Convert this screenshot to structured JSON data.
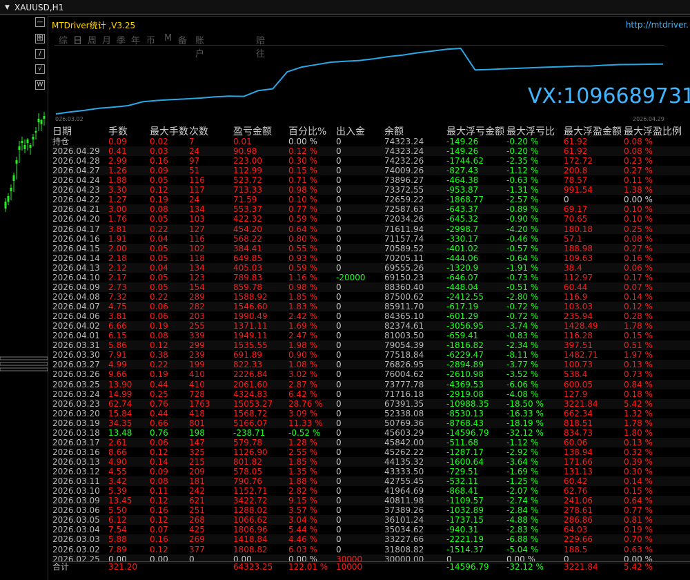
{
  "window": {
    "title": "XAUUSD,H1"
  },
  "panel": {
    "title": "MTDriver统计 ,V3.25",
    "link": "http://mtdriver.",
    "watermark": "VX:1096689731"
  },
  "sidebar_buttons": [
    "—",
    "图",
    "/",
    "√",
    "W"
  ],
  "tabs": [
    "综",
    "日",
    "周",
    "月",
    "季",
    "年",
    "币",
    "M",
    "备",
    "账户",
    "赔往"
  ],
  "equity_chart": {
    "date_start": "026.03.02",
    "date_end": "2026.04.29",
    "color": "#29a8e8",
    "values": [
      30000,
      31808.82,
      33227.66,
      35034.62,
      36101.24,
      37389.26,
      40811.98,
      41964.69,
      42755.45,
      43333.5,
      44135.32,
      45262.22,
      45842.0,
      45603.29,
      50769.36,
      52338.08,
      67391.35,
      71716.18,
      73777.78,
      76004.62,
      76826.95,
      77518.84,
      79054.39,
      81003.5,
      82374.61,
      84365.1,
      85911.7,
      87500.62,
      88360.4,
      69150.23,
      69555.26,
      70205.11,
      70589.52,
      71157.74,
      71611.94,
      72034.26,
      72587.63,
      72659.22,
      73372.55,
      73896.27,
      74009.26,
      74232.26,
      74323.24
    ]
  },
  "table": {
    "headers": [
      "日期",
      "手数",
      "最大手数",
      "次数",
      "盈亏金额",
      "百分比%",
      "出入金",
      "余额",
      "最大浮亏金额",
      "最大浮亏比",
      "最大浮盈金额",
      "最大浮盈比例"
    ],
    "rows": [
      [
        "持仓",
        "0.09",
        "0.02",
        "7",
        "0.01",
        "0.00 %",
        "0",
        "74323.24",
        "-149.26",
        "-0.20 %",
        "61.92",
        "0.08 %"
      ],
      [
        "2026.04.29",
        "0.41",
        "0.03",
        "24",
        "90.98",
        "0.12 %",
        "0",
        "74323.24",
        "-149.26",
        "-0.20 %",
        "61.92",
        "0.08 %"
      ],
      [
        "2026.04.28",
        "2.99",
        "0.16",
        "97",
        "223.00",
        "0.30 %",
        "0",
        "74232.26",
        "-1744.62",
        "-2.35 %",
        "172.72",
        "0.23 %"
      ],
      [
        "2026.04.27",
        "1.26",
        "0.09",
        "51",
        "112.99",
        "0.15 %",
        "0",
        "74009.26",
        "-827.43",
        "-1.12 %",
        "200.8",
        "0.27 %"
      ],
      [
        "2026.04.24",
        "1.88",
        "0.05",
        "116",
        "523.72",
        "0.71 %",
        "0",
        "73896.27",
        "-464.38",
        "-0.63 %",
        "78.57",
        "0.11 %"
      ],
      [
        "2026.04.23",
        "3.30",
        "0.12",
        "117",
        "713.33",
        "0.98 %",
        "0",
        "73372.55",
        "-953.87",
        "-1.31 %",
        "991.54",
        "1.38 %"
      ],
      [
        "2026.04.22",
        "1.27",
        "0.19",
        "24",
        "71.59",
        "0.10 %",
        "0",
        "72659.22",
        "-1868.77",
        "-2.57 %",
        "0",
        "0.00 %"
      ],
      [
        "2026.04.21",
        "3.00",
        "0.08",
        "134",
        "553.37",
        "0.77 %",
        "0",
        "72587.63",
        "-643.37",
        "-0.89 %",
        "69.17",
        "0.10 %"
      ],
      [
        "2026.04.20",
        "1.76",
        "0.05",
        "103",
        "422.32",
        "0.59 %",
        "0",
        "72034.26",
        "-645.32",
        "-0.90 %",
        "70.65",
        "0.10 %"
      ],
      [
        "2026.04.17",
        "3.81",
        "0.22",
        "127",
        "454.20",
        "0.64 %",
        "0",
        "71611.94",
        "-2998.7",
        "-4.20 %",
        "180.18",
        "0.25 %"
      ],
      [
        "2026.04.16",
        "1.91",
        "0.04",
        "116",
        "568.22",
        "0.80 %",
        "0",
        "71157.74",
        "-330.17",
        "-0.46 %",
        "57.1",
        "0.08 %"
      ],
      [
        "2026.04.15",
        "2.00",
        "0.05",
        "102",
        "384.41",
        "0.55 %",
        "0",
        "70589.52",
        "-401.02",
        "-0.57 %",
        "188.98",
        "0.27 %"
      ],
      [
        "2026.04.14",
        "2.18",
        "0.05",
        "118",
        "649.85",
        "0.93 %",
        "0",
        "70205.11",
        "-444.06",
        "-0.64 %",
        "109.63",
        "0.16 %"
      ],
      [
        "2026.04.13",
        "2.12",
        "0.04",
        "134",
        "405.03",
        "0.59 %",
        "0",
        "69555.26",
        "-1320.9",
        "-1.91 %",
        "38.4",
        "0.06 %"
      ],
      [
        "2026.04.10",
        "2.17",
        "0.05",
        "123",
        "789.83",
        "1.16 %",
        "-20000",
        "69150.23",
        "-646.07",
        "-0.73 %",
        "112.97",
        "0.17 %"
      ],
      [
        "2026.04.09",
        "2.73",
        "0.05",
        "154",
        "859.78",
        "0.98 %",
        "0",
        "88360.40",
        "-448.04",
        "-0.51 %",
        "60.44",
        "0.07 %"
      ],
      [
        "2026.04.08",
        "7.32",
        "0.22",
        "289",
        "1588.92",
        "1.85 %",
        "0",
        "87500.62",
        "-2412.55",
        "-2.80 %",
        "116.9",
        "0.14 %"
      ],
      [
        "2026.04.07",
        "4.75",
        "0.06",
        "282",
        "1546.60",
        "1.83 %",
        "0",
        "85911.70",
        "-617.19",
        "-0.72 %",
        "103.03",
        "0.12 %"
      ],
      [
        "2026.04.06",
        "3.81",
        "0.06",
        "203",
        "1990.49",
        "2.42 %",
        "0",
        "84365.10",
        "-601.29",
        "-0.72 %",
        "235.94",
        "0.28 %"
      ],
      [
        "2026.04.02",
        "6.66",
        "0.19",
        "255",
        "1371.11",
        "1.69 %",
        "0",
        "82374.61",
        "-3056.95",
        "-3.74 %",
        "1428.49",
        "1.78 %"
      ],
      [
        "2026.04.01",
        "6.15",
        "0.08",
        "339",
        "1949.11",
        "2.47 %",
        "0",
        "81003.50",
        "-659.41",
        "-0.83 %",
        "116.28",
        "0.15 %"
      ],
      [
        "2026.03.31",
        "5.86",
        "0.12",
        "299",
        "1535.55",
        "1.98 %",
        "0",
        "79054.39",
        "-1816.82",
        "-2.34 %",
        "397.51",
        "0.51 %"
      ],
      [
        "2026.03.30",
        "7.91",
        "0.38",
        "239",
        "691.89",
        "0.90 %",
        "0",
        "77518.84",
        "-6229.47",
        "-8.11 %",
        "1482.71",
        "1.97 %"
      ],
      [
        "2026.03.27",
        "4.99",
        "0.22",
        "199",
        "822.33",
        "1.08 %",
        "0",
        "76826.95",
        "-2894.89",
        "-3.77 %",
        "100.73",
        "0.13 %"
      ],
      [
        "2026.03.26",
        "9.66",
        "0.19",
        "410",
        "2226.84",
        "3.02 %",
        "0",
        "76004.62",
        "-2610.98",
        "-3.52 %",
        "538.4",
        "0.73 %"
      ],
      [
        "2026.03.25",
        "13.90",
        "0.44",
        "410",
        "2061.60",
        "2.87 %",
        "0",
        "73777.78",
        "-4369.53",
        "-6.06 %",
        "600.05",
        "0.84 %"
      ],
      [
        "2026.03.24",
        "14.99",
        "0.25",
        "728",
        "4324.83",
        "6.42 %",
        "0",
        "71716.18",
        "-2919.08",
        "-4.08 %",
        "127.9",
        "0.18 %"
      ],
      [
        "2026.03.23",
        "62.74",
        "0.76",
        "1763",
        "15053.27",
        "28.76 %",
        "0",
        "67391.35",
        "-10988.35",
        "-18.50 %",
        "3221.84",
        "5.42 %"
      ],
      [
        "2026.03.20",
        "15.84",
        "0.44",
        "418",
        "1568.72",
        "3.09 %",
        "0",
        "52338.08",
        "-8530.13",
        "-16.33 %",
        "662.34",
        "1.32 %"
      ],
      [
        "2026.03.19",
        "34.35",
        "0.66",
        "801",
        "5166.07",
        "11.33 %",
        "0",
        "50769.36",
        "-8768.43",
        "-18.19 %",
        "818.51",
        "1.78 %"
      ],
      [
        "2026.03.18",
        "13.48",
        "0.76",
        "198",
        "-238.71",
        "-0.52 %",
        "0",
        "45603.29",
        "-14596.79",
        "-32.12 %",
        "834.73",
        "1.80 %"
      ],
      [
        "2026.03.17",
        "2.61",
        "0.06",
        "147",
        "579.78",
        "1.28 %",
        "0",
        "45842.00",
        "-511.68",
        "-1.12 %",
        "60.06",
        "0.13 %"
      ],
      [
        "2026.03.16",
        "8.66",
        "0.12",
        "325",
        "1126.90",
        "2.55 %",
        "0",
        "45262.22",
        "-1287.17",
        "-2.92 %",
        "138.94",
        "0.32 %"
      ],
      [
        "2026.03.13",
        "4.90",
        "0.14",
        "215",
        "801.82",
        "1.85 %",
        "0",
        "44135.32",
        "-1600.64",
        "-3.64 %",
        "171.66",
        "0.39 %"
      ],
      [
        "2026.03.12",
        "4.55",
        "0.09",
        "209",
        "578.05",
        "1.35 %",
        "0",
        "43333.50",
        "-729.51",
        "-1.69 %",
        "131.13",
        "0.30 %"
      ],
      [
        "2026.03.11",
        "3.42",
        "0.08",
        "181",
        "790.76",
        "1.88 %",
        "0",
        "42755.45",
        "-532.11",
        "-1.25 %",
        "60.42",
        "0.14 %"
      ],
      [
        "2026.03.10",
        "5.39",
        "0.11",
        "242",
        "1152.71",
        "2.82 %",
        "0",
        "41964.69",
        "-868.41",
        "-2.07 %",
        "62.76",
        "0.15 %"
      ],
      [
        "2026.03.09",
        "13.45",
        "0.12",
        "621",
        "3422.72",
        "9.15 %",
        "0",
        "40811.98",
        "-1109.57",
        "-2.74 %",
        "241.06",
        "0.64 %"
      ],
      [
        "2026.03.06",
        "5.50",
        "0.16",
        "251",
        "1288.02",
        "3.57 %",
        "0",
        "37389.26",
        "-1032.89",
        "-2.84 %",
        "278.61",
        "0.77 %"
      ],
      [
        "2026.03.05",
        "6.12",
        "0.12",
        "268",
        "1066.62",
        "3.04 %",
        "0",
        "36101.24",
        "-1737.15",
        "-4.88 %",
        "286.86",
        "0.81 %"
      ],
      [
        "2026.03.04",
        "7.54",
        "0.07",
        "425",
        "1806.96",
        "5.44 %",
        "0",
        "35034.62",
        "-940.31",
        "-2.83 %",
        "64.03",
        "0.19 %"
      ],
      [
        "2026.03.03",
        "5.88",
        "0.16",
        "269",
        "1418.84",
        "4.46 %",
        "0",
        "33227.66",
        "-2221.19",
        "-6.88 %",
        "229.66",
        "0.70 %"
      ],
      [
        "2026.03.02",
        "7.89",
        "0.12",
        "377",
        "1808.82",
        "6.03 %",
        "0",
        "31808.82",
        "-1514.37",
        "-5.04 %",
        "188.5",
        "0.63 %"
      ],
      [
        "2026.02.25",
        "0.00",
        "0.00",
        "0",
        "0.00",
        "0.00 %",
        "30000",
        "30000.00",
        "0",
        "0.00 %",
        "0",
        "0.00 %"
      ]
    ],
    "summary": [
      "合计",
      "321.20",
      "",
      "",
      "64323.25",
      "122.01 %",
      "10000",
      "",
      "-14596.79",
      "-32.12 %",
      "3221.84",
      "5.42 %"
    ]
  },
  "colors": {
    "positive": "#ff1a1a",
    "negative": "#1aff1a",
    "neutral": "#cccccc",
    "accent": "#3fb6ff",
    "title": "#ffd700"
  }
}
